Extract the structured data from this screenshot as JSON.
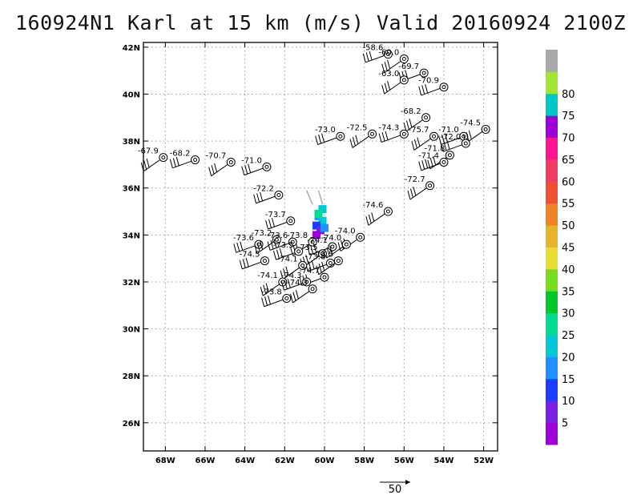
{
  "title": "160924N1 Karl at 15 km (m/s) Valid 20160924 2100Z",
  "chart_data": {
    "type": "scatter",
    "title": "160924N1 Karl at 15 km (m/s) Valid 20160924 2100Z",
    "xlim": [
      -69.1,
      -51.3
    ],
    "ylim": [
      24.8,
      42.2
    ],
    "x_ticks": [
      -68,
      -66,
      -64,
      -62,
      -60,
      -58,
      -56,
      -54,
      -52
    ],
    "x_tick_labels": [
      "68W",
      "66W",
      "64W",
      "62W",
      "60W",
      "58W",
      "56W",
      "54W",
      "52W"
    ],
    "y_ticks": [
      26,
      28,
      30,
      32,
      34,
      36,
      38,
      40,
      42
    ],
    "y_tick_labels": [
      "26N",
      "28N",
      "30N",
      "32N",
      "34N",
      "36N",
      "38N",
      "40N",
      "42N"
    ],
    "grid": true,
    "colorbar": {
      "tick_labels": [
        "5",
        "10",
        "15",
        "20",
        "25",
        "30",
        "35",
        "40",
        "45",
        "50",
        "55",
        "60",
        "65",
        "70",
        "75",
        "80"
      ],
      "colors": [
        "#a000d8",
        "#7b1fe0",
        "#1e3cff",
        "#1e90ff",
        "#00c8d8",
        "#00dc96",
        "#00c82a",
        "#78dc1e",
        "#e6dc32",
        "#e6b428",
        "#f08228",
        "#f05032",
        "#f03c64",
        "#ff1493",
        "#a000d8",
        "#00c8c8",
        "#a0e632",
        "#a8a8a8"
      ]
    },
    "reference_vector": {
      "label": "50"
    },
    "dropsondes": [
      {
        "lon": -56.8,
        "lat": 41.7,
        "label": "-58.6"
      },
      {
        "lon": -56.0,
        "lat": 41.5,
        "label": "-60.0"
      },
      {
        "lon": -55.0,
        "lat": 40.9,
        "label": "-69.7"
      },
      {
        "lon": -56.0,
        "lat": 40.6,
        "label": "-63.0"
      },
      {
        "lon": -54.0,
        "lat": 40.3,
        "label": "-70.9"
      },
      {
        "lon": -54.9,
        "lat": 39.0,
        "label": "-68.2"
      },
      {
        "lon": -59.2,
        "lat": 38.2,
        "label": "-73.0"
      },
      {
        "lon": -57.6,
        "lat": 38.3,
        "label": "-72.5"
      },
      {
        "lon": -56.0,
        "lat": 38.3,
        "label": "-74.3"
      },
      {
        "lon": -54.5,
        "lat": 38.2,
        "label": "-75.7"
      },
      {
        "lon": -53.0,
        "lat": 38.2,
        "label": "-71.0"
      },
      {
        "lon": -51.9,
        "lat": 38.5,
        "label": "-74.5"
      },
      {
        "lon": -52.9,
        "lat": 37.9,
        "label": "-72.0"
      },
      {
        "lon": -53.7,
        "lat": 37.4,
        "label": "-71.8"
      },
      {
        "lon": -54.0,
        "lat": 37.1,
        "label": "-71.4"
      },
      {
        "lon": -68.1,
        "lat": 37.3,
        "label": "-67.9"
      },
      {
        "lon": -66.5,
        "lat": 37.2,
        "label": "-68.2"
      },
      {
        "lon": -64.7,
        "lat": 37.1,
        "label": "-70.7"
      },
      {
        "lon": -62.9,
        "lat": 36.9,
        "label": "-71.0"
      },
      {
        "lon": -54.7,
        "lat": 36.1,
        "label": "-72.7"
      },
      {
        "lon": -62.3,
        "lat": 35.7,
        "label": "-72.2"
      },
      {
        "lon": -56.8,
        "lat": 35.0,
        "label": "-74.6"
      },
      {
        "lon": -61.7,
        "lat": 34.6,
        "label": "-73.7"
      },
      {
        "lon": -58.2,
        "lat": 33.9,
        "label": "-74.0"
      },
      {
        "lon": -63.3,
        "lat": 33.6,
        "label": "-73.6"
      },
      {
        "lon": -62.4,
        "lat": 33.8,
        "label": "-73.2"
      },
      {
        "lon": -61.6,
        "lat": 33.7,
        "label": "-73.6"
      },
      {
        "lon": -60.6,
        "lat": 33.7,
        "label": "-73.8"
      },
      {
        "lon": -59.6,
        "lat": 33.5,
        "label": "-74.1"
      },
      {
        "lon": -58.9,
        "lat": 33.6,
        "label": "-74.0"
      },
      {
        "lon": -61.3,
        "lat": 33.3,
        "label": "-73.5"
      },
      {
        "lon": -60.1,
        "lat": 33.2,
        "label": "-73.5"
      },
      {
        "lon": -59.7,
        "lat": 32.8,
        "label": "-73.8"
      },
      {
        "lon": -59.3,
        "lat": 32.9,
        "label": "-73.5"
      },
      {
        "lon": -63.0,
        "lat": 32.9,
        "label": "-74.5"
      },
      {
        "lon": -61.1,
        "lat": 32.7,
        "label": "-74.1"
      },
      {
        "lon": -60.0,
        "lat": 32.2,
        "label": "-74.7"
      },
      {
        "lon": -62.1,
        "lat": 32.0,
        "label": "-74.1"
      },
      {
        "lon": -60.9,
        "lat": 32.0,
        "label": "-74.3"
      },
      {
        "lon": -60.6,
        "lat": 31.7,
        "label": "-74.3"
      },
      {
        "lon": -61.9,
        "lat": 31.3,
        "label": "-73.8"
      }
    ]
  }
}
